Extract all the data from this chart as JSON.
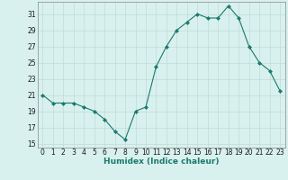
{
  "x": [
    0,
    1,
    2,
    3,
    4,
    5,
    6,
    7,
    8,
    9,
    10,
    11,
    12,
    13,
    14,
    15,
    16,
    17,
    18,
    19,
    20,
    21,
    22,
    23
  ],
  "y": [
    21,
    20,
    20,
    20,
    19.5,
    19,
    18,
    16.5,
    15.5,
    19,
    19.5,
    24.5,
    27,
    29,
    30,
    31,
    30.5,
    30.5,
    32,
    30.5,
    27,
    25,
    24,
    21.5
  ],
  "xlabel": "Humidex (Indice chaleur)",
  "xlim": [
    -0.5,
    23.5
  ],
  "ylim": [
    14.5,
    32.5
  ],
  "yticks": [
    15,
    17,
    19,
    21,
    23,
    25,
    27,
    29,
    31
  ],
  "xticks": [
    0,
    1,
    2,
    3,
    4,
    5,
    6,
    7,
    8,
    9,
    10,
    11,
    12,
    13,
    14,
    15,
    16,
    17,
    18,
    19,
    20,
    21,
    22,
    23
  ],
  "line_color": "#1a7a6e",
  "marker": "D",
  "marker_size": 2.0,
  "bg_color": "#d8f0ee",
  "grid_color": "#c0dcd8",
  "tick_fontsize": 5.5,
  "xlabel_fontsize": 6.5,
  "linewidth": 0.8
}
